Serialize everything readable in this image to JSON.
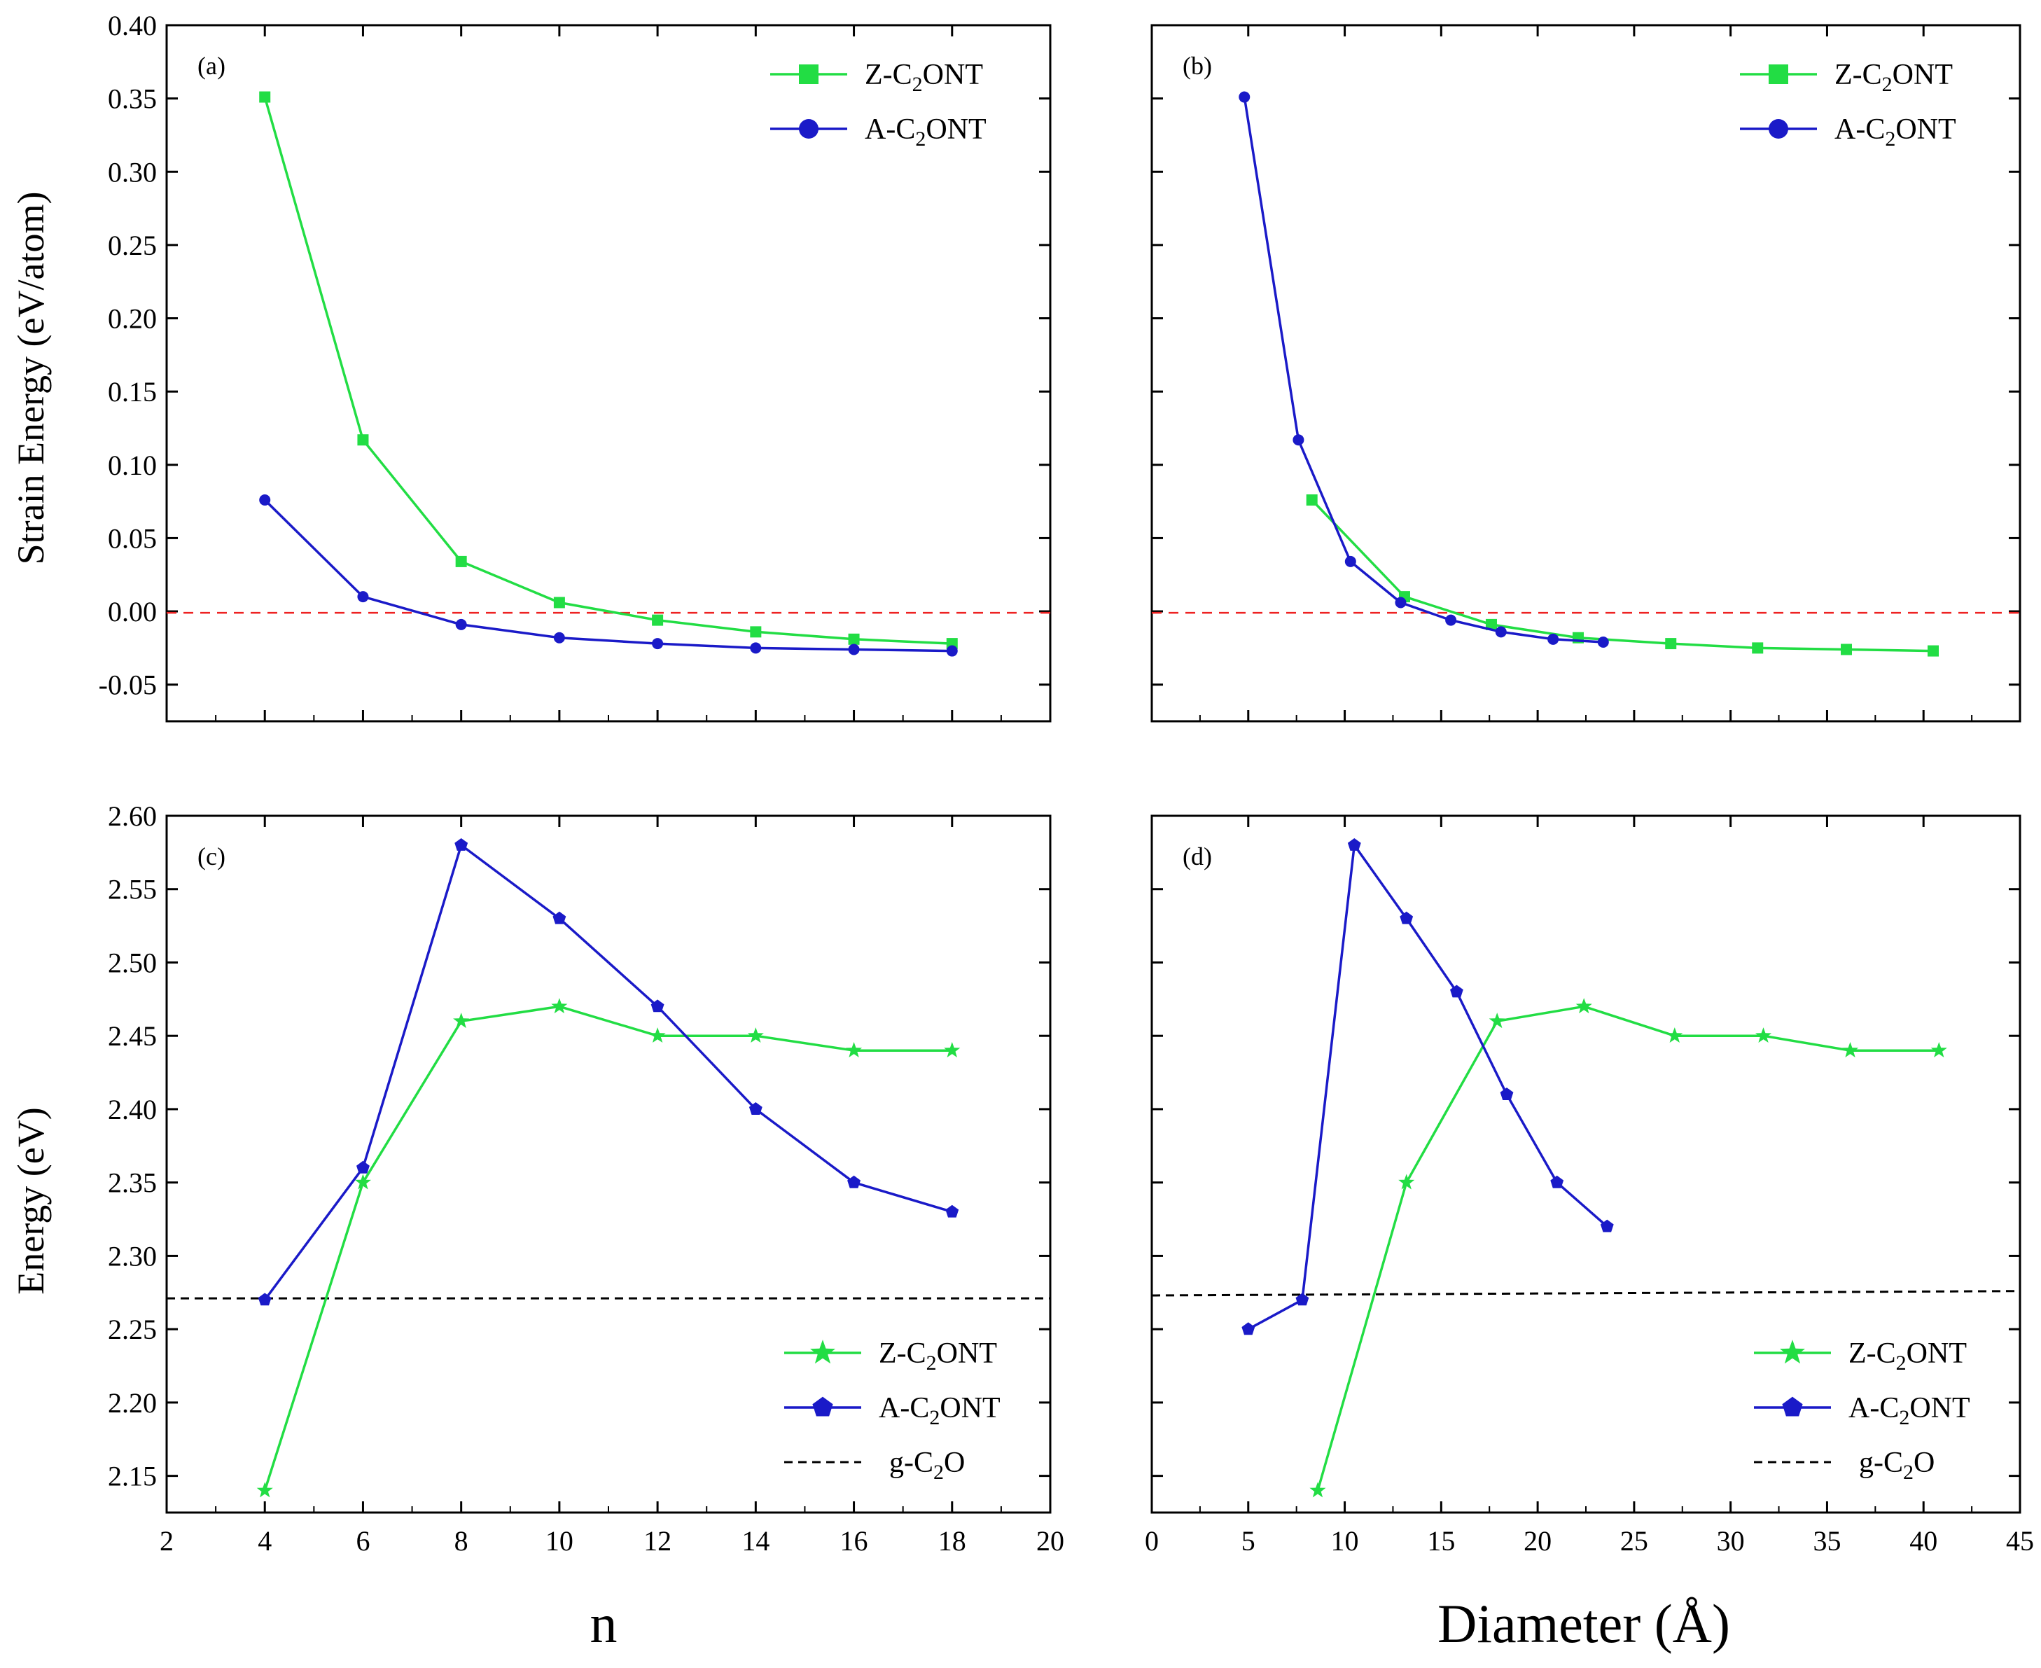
{
  "figure": {
    "y_title_top": "Strain Energy (eV/atom)",
    "y_title_bottom": "Energy (eV)",
    "x_title_left": "n",
    "x_title_right": "Diameter (Å)"
  },
  "colors": {
    "green": "#22dd44",
    "blue": "#1a1ac8",
    "zero_line": "#ee2222",
    "ref_line": "#000000"
  },
  "chart_data": [
    {
      "id": "a",
      "panel_label": "(a)",
      "type": "line",
      "xlim": [
        2,
        20
      ],
      "ylim": [
        -0.075,
        0.4
      ],
      "xticks": [
        2,
        4,
        6,
        8,
        10,
        12,
        14,
        16,
        18,
        20
      ],
      "yticks": [
        -0.05,
        0.0,
        0.05,
        0.1,
        0.15,
        0.2,
        0.25,
        0.3,
        0.35,
        0.4
      ],
      "ytick_labels": [
        "-0.05",
        "0.00",
        "0.05",
        "0.10",
        "0.15",
        "0.20",
        "0.25",
        "0.30",
        "0.35",
        "0.40"
      ],
      "show_xtick_labels": false,
      "show_ytick_labels": true,
      "ref_line": {
        "y": -0.001,
        "style": "red-dashed"
      },
      "legend": {
        "position": "top-right"
      },
      "series": [
        {
          "name": "Z-C2ONT",
          "color": "green",
          "marker": "square",
          "x": [
            4,
            6,
            8,
            10,
            12,
            14,
            16,
            18
          ],
          "y": [
            0.351,
            0.117,
            0.034,
            0.006,
            -0.006,
            -0.014,
            -0.019,
            -0.022
          ]
        },
        {
          "name": "A-C2ONT",
          "color": "blue",
          "marker": "circle",
          "x": [
            4,
            6,
            8,
            10,
            12,
            14,
            16,
            18
          ],
          "y": [
            0.076,
            0.01,
            -0.009,
            -0.018,
            -0.022,
            -0.025,
            -0.026,
            -0.027
          ]
        }
      ]
    },
    {
      "id": "b",
      "panel_label": "(b)",
      "type": "line",
      "xlim": [
        0,
        45
      ],
      "ylim": [
        -0.075,
        0.4
      ],
      "xticks": [
        0,
        5,
        10,
        15,
        20,
        25,
        30,
        35,
        40,
        45
      ],
      "yticks": [
        -0.05,
        0.0,
        0.05,
        0.1,
        0.15,
        0.2,
        0.25,
        0.3,
        0.35,
        0.4
      ],
      "show_xtick_labels": false,
      "show_ytick_labels": false,
      "ref_line": {
        "y": -0.001,
        "style": "red-dashed"
      },
      "legend": {
        "position": "top-right"
      },
      "series": [
        {
          "name": "Z-C2ONT",
          "color": "green",
          "marker": "square",
          "x": [
            8.3,
            13.1,
            17.6,
            22.1,
            26.9,
            31.4,
            36.0,
            40.5
          ],
          "y": [
            0.076,
            0.01,
            -0.009,
            -0.018,
            -0.022,
            -0.025,
            -0.026,
            -0.027
          ]
        },
        {
          "name": "A-C2ONT",
          "color": "blue",
          "marker": "circle",
          "x": [
            4.8,
            7.6,
            10.3,
            12.9,
            15.5,
            18.1,
            20.8,
            23.4
          ],
          "y": [
            0.351,
            0.117,
            0.034,
            0.006,
            -0.006,
            -0.014,
            -0.019,
            -0.021
          ]
        }
      ]
    },
    {
      "id": "c",
      "panel_label": "(c)",
      "type": "line",
      "xlim": [
        2,
        20
      ],
      "ylim": [
        2.125,
        2.6
      ],
      "xticks": [
        2,
        4,
        6,
        8,
        10,
        12,
        14,
        16,
        18,
        20
      ],
      "xtick_labels": [
        "2",
        "4",
        "6",
        "8",
        "10",
        "12",
        "14",
        "16",
        "18",
        "20"
      ],
      "yticks": [
        2.15,
        2.2,
        2.25,
        2.3,
        2.35,
        2.4,
        2.45,
        2.5,
        2.55,
        2.6
      ],
      "ytick_labels": [
        "2.15",
        "2.20",
        "2.25",
        "2.30",
        "2.35",
        "2.40",
        "2.45",
        "2.50",
        "2.55",
        "2.60"
      ],
      "show_xtick_labels": true,
      "show_ytick_labels": true,
      "ref_line": {
        "y": 2.271,
        "style": "black-dashed"
      },
      "legend": {
        "position": "bottom-right",
        "ref_label": "g-C2O"
      },
      "series": [
        {
          "name": "Z-C2ONT",
          "color": "green",
          "marker": "star",
          "x": [
            4,
            6,
            8,
            10,
            12,
            14,
            16,
            18
          ],
          "y": [
            2.14,
            2.35,
            2.46,
            2.47,
            2.45,
            2.45,
            2.44,
            2.44
          ]
        },
        {
          "name": "A-C2ONT",
          "color": "blue",
          "marker": "pentagon",
          "x": [
            4,
            6,
            8,
            10,
            12,
            14,
            16,
            18
          ],
          "y": [
            2.27,
            2.36,
            2.58,
            2.53,
            2.47,
            2.4,
            2.35,
            2.33
          ]
        }
      ]
    },
    {
      "id": "d",
      "panel_label": "(d)",
      "type": "line",
      "xlim": [
        0,
        45
      ],
      "ylim": [
        2.125,
        2.6
      ],
      "xticks": [
        0,
        5,
        10,
        15,
        20,
        25,
        30,
        35,
        40,
        45
      ],
      "xtick_labels": [
        "0",
        "5",
        "10",
        "15",
        "20",
        "25",
        "30",
        "35",
        "40",
        "45"
      ],
      "yticks": [
        2.15,
        2.2,
        2.25,
        2.3,
        2.35,
        2.4,
        2.45,
        2.5,
        2.55,
        2.6
      ],
      "show_xtick_labels": true,
      "show_ytick_labels": false,
      "ref_line": {
        "y": 2.273,
        "y_end": 2.276,
        "style": "black-dashed"
      },
      "legend": {
        "position": "bottom-right",
        "ref_label": "g-C2O"
      },
      "series": [
        {
          "name": "Z-C2ONT",
          "color": "green",
          "marker": "star",
          "x": [
            8.6,
            13.2,
            17.9,
            22.4,
            27.1,
            31.7,
            36.2,
            40.8
          ],
          "y": [
            2.14,
            2.35,
            2.46,
            2.47,
            2.45,
            2.45,
            2.44,
            2.44
          ]
        },
        {
          "name": "A-C2ONT",
          "color": "blue",
          "marker": "pentagon",
          "x": [
            5.0,
            7.8,
            10.5,
            13.2,
            15.8,
            18.4,
            21.0,
            23.6
          ],
          "y": [
            2.25,
            2.27,
            2.58,
            2.53,
            2.48,
            2.41,
            2.35,
            2.32
          ]
        }
      ]
    }
  ]
}
